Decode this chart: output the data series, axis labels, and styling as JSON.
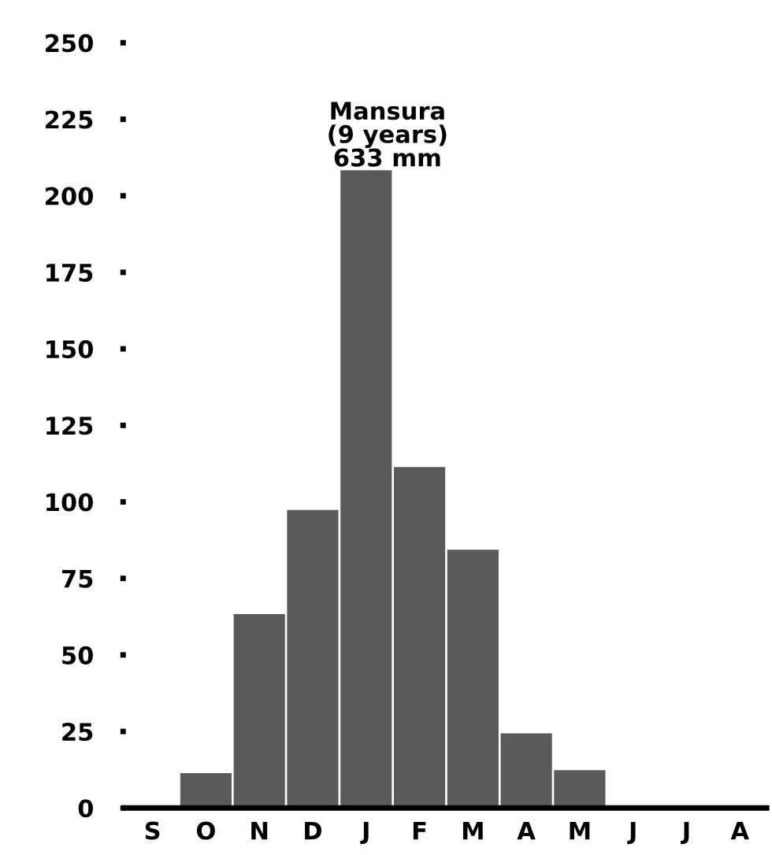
{
  "chart_data": {
    "type": "bar",
    "title": "Mansura\n(9 years)\n633 mm",
    "categories": [
      "S",
      "O",
      "N",
      "D",
      "J",
      "F",
      "M",
      "A",
      "M",
      "J",
      "J",
      "A"
    ],
    "values": [
      0,
      11,
      63,
      97,
      208,
      111,
      84,
      24,
      12,
      0,
      0,
      0
    ],
    "color": "#5a5a5a",
    "ylim": [
      0,
      250
    ],
    "yticks": [
      0,
      25,
      50,
      75,
      100,
      125,
      150,
      175,
      200,
      225,
      250
    ],
    "grid": false
  }
}
